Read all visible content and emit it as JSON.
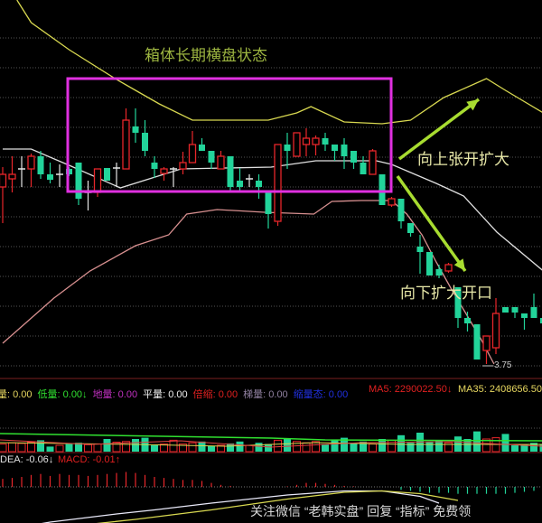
{
  "chart_data": {
    "type": "candlestick",
    "title": "",
    "ylim": [
      3.66,
      7.78
    ],
    "grid": true,
    "colors": {
      "up": "#e8262a",
      "down": "#22d49a",
      "flat": "#e6e6e6",
      "upper_band": "#d8d850",
      "middle_band": "#e0e0e0",
      "lower_band": "#d89090",
      "box": "#e030e0",
      "arrow": "#a8dc30"
    },
    "candles": [
      [
        5.71,
        5.85,
        5.93,
        5.31
      ],
      [
        5.8,
        5.85,
        6.05,
        5.65
      ],
      [
        5.91,
        5.91,
        6.05,
        5.71
      ],
      [
        5.91,
        6.05,
        6.08,
        5.71
      ],
      [
        6.05,
        5.85,
        6.11,
        5.8
      ],
      [
        5.85,
        5.79,
        5.98,
        5.75
      ],
      [
        5.85,
        5.85,
        5.96,
        5.71
      ],
      [
        5.91,
        5.85,
        5.93,
        5.83
      ],
      [
        5.98,
        5.58,
        5.98,
        5.51
      ],
      [
        5.65,
        5.65,
        5.78,
        5.45
      ],
      [
        5.65,
        5.91,
        5.91,
        5.6
      ],
      [
        5.92,
        5.78,
        5.92,
        5.78
      ],
      [
        5.92,
        5.92,
        5.98,
        5.71
      ],
      [
        5.91,
        6.45,
        6.58,
        5.91
      ],
      [
        6.38,
        6.31,
        6.58,
        6.2
      ],
      [
        6.31,
        6.11,
        6.45,
        6.05
      ],
      [
        5.98,
        5.91,
        6.05,
        5.81
      ],
      [
        5.86,
        5.91,
        5.93,
        5.78
      ],
      [
        5.91,
        5.91,
        5.93,
        5.71
      ],
      [
        5.91,
        5.98,
        6.1,
        5.85
      ],
      [
        5.98,
        6.18,
        6.33,
        5.98
      ],
      [
        6.18,
        6.11,
        6.25,
        6.11
      ],
      [
        6.11,
        5.98,
        6.11,
        5.91
      ],
      [
        5.91,
        6.05,
        6.11,
        5.91
      ],
      [
        6.05,
        5.71,
        6.05,
        5.65
      ],
      [
        5.78,
        5.71,
        5.92,
        5.66
      ],
      [
        5.8,
        5.8,
        5.85,
        5.71
      ],
      [
        5.78,
        5.71,
        5.85,
        5.58
      ],
      [
        5.65,
        5.41,
        5.65,
        5.25
      ],
      [
        5.33,
        6.18,
        6.18,
        5.28
      ],
      [
        6.18,
        6.11,
        6.31,
        5.91
      ],
      [
        6.05,
        6.31,
        6.31,
        6.05
      ],
      [
        6.18,
        6.25,
        6.36,
        6.05
      ],
      [
        6.18,
        6.25,
        6.28,
        6.06
      ],
      [
        6.25,
        6.18,
        6.31,
        6.11
      ],
      [
        6.18,
        6.11,
        6.18,
        6.0
      ],
      [
        6.18,
        6.05,
        6.25,
        5.91
      ],
      [
        6.11,
        5.98,
        6.11,
        5.91
      ],
      [
        5.98,
        5.85,
        6.05,
        5.85
      ],
      [
        5.85,
        6.11,
        6.13,
        5.85
      ],
      [
        5.85,
        5.51,
        5.85,
        5.51
      ],
      [
        5.51,
        5.58,
        5.6,
        5.49
      ],
      [
        5.58,
        5.33,
        5.58,
        5.25
      ],
      [
        5.31,
        5.2,
        5.31,
        5.16
      ],
      [
        5.05,
        4.99,
        5.18,
        4.75
      ],
      [
        4.99,
        4.73,
        4.99,
        4.73
      ],
      [
        4.8,
        4.73,
        4.85,
        4.7
      ],
      [
        4.78,
        4.85,
        4.87,
        4.76
      ],
      [
        4.6,
        4.26,
        4.6,
        4.15
      ],
      [
        4.26,
        4.2,
        4.33,
        4.11
      ],
      [
        4.19,
        3.8,
        4.19,
        3.8
      ],
      [
        3.9,
        4.06,
        4.06,
        3.75
      ],
      [
        3.93,
        4.31,
        4.48,
        3.86
      ],
      [
        4.38,
        4.32,
        4.38,
        4.32
      ],
      [
        4.38,
        4.32,
        4.38,
        4.26
      ],
      [
        4.31,
        4.26,
        4.31,
        4.13
      ],
      [
        4.38,
        4.26,
        4.53,
        4.26
      ],
      [
        4.26,
        4.2,
        4.26,
        4.2
      ]
    ],
    "upper_band": [
      [
        1.5,
        7.78
      ],
      [
        3,
        7.53
      ],
      [
        7,
        7.23
      ],
      [
        12,
        6.9
      ],
      [
        14,
        6.78
      ],
      [
        16.5,
        6.63
      ],
      [
        20,
        6.45
      ],
      [
        28,
        6.45
      ],
      [
        31,
        6.53
      ],
      [
        32.5,
        6.6
      ],
      [
        36,
        6.43
      ],
      [
        40,
        6.41
      ],
      [
        43,
        6.45
      ],
      [
        46.5,
        6.7
      ],
      [
        51,
        6.91
      ],
      [
        53,
        6.78
      ],
      [
        57,
        6.53
      ]
    ],
    "middle_band": [
      [
        0,
        6.13
      ],
      [
        3,
        6.13
      ],
      [
        7,
        5.95
      ],
      [
        12.4,
        5.7
      ],
      [
        18.8,
        5.91
      ],
      [
        28.3,
        5.93
      ],
      [
        33,
        6.0
      ],
      [
        39.4,
        6.0
      ],
      [
        41,
        5.96
      ],
      [
        45.7,
        5.75
      ],
      [
        48.6,
        5.61
      ],
      [
        52.1,
        5.21
      ],
      [
        57,
        4.78
      ]
    ],
    "lower_band": [
      [
        0,
        3.98
      ],
      [
        5.4,
        4.48
      ],
      [
        9.2,
        4.78
      ],
      [
        14,
        5.06
      ],
      [
        17.5,
        5.18
      ],
      [
        19.4,
        5.41
      ],
      [
        22.6,
        5.46
      ],
      [
        27.6,
        5.43
      ],
      [
        32.8,
        5.41
      ],
      [
        34.7,
        5.55
      ],
      [
        37.8,
        5.56
      ],
      [
        41,
        5.56
      ],
      [
        42.6,
        5.41
      ],
      [
        44.2,
        5.18
      ],
      [
        45.7,
        4.88
      ],
      [
        47.3,
        4.58
      ],
      [
        49,
        4.28
      ],
      [
        50.5,
        4.01
      ],
      [
        51.8,
        3.75
      ]
    ],
    "low_label": "3.75",
    "annotations": {
      "box_label": "箱体长期横盘状态",
      "up_label": "向上张开扩大",
      "down_label": "向下扩大开口"
    },
    "volume": [
      12,
      14,
      13,
      15,
      18,
      8,
      10,
      12,
      14,
      11,
      12,
      20,
      15,
      16,
      20,
      22,
      10,
      12,
      18,
      12,
      14,
      16,
      9,
      10,
      13,
      16,
      10,
      14,
      12,
      18,
      20,
      16,
      14,
      16,
      12,
      18,
      22,
      14,
      16,
      12,
      20,
      18,
      26,
      14,
      30,
      16,
      18,
      14,
      24,
      20,
      32,
      20,
      22,
      28,
      10,
      12,
      14,
      12
    ],
    "volume_ma": {
      "ma5_color": "#ffffff",
      "ma35_color": "#e8c060"
    },
    "macd_hist": [
      8,
      9,
      10,
      12,
      13,
      11,
      13,
      12,
      12,
      11,
      12,
      13,
      14,
      15,
      14,
      12,
      10,
      9,
      8,
      7,
      7,
      6,
      4,
      2,
      1,
      0,
      0,
      0,
      0,
      0,
      0.5,
      2,
      4,
      4,
      3,
      2,
      1,
      0.5,
      0,
      0,
      0,
      0,
      -3,
      -4,
      -5,
      -6,
      -6,
      -6,
      -7,
      -7,
      -7,
      -7,
      -7,
      -7,
      -6,
      -5,
      -4,
      -3
    ],
    "dif": [
      [
        0,
        -0.32
      ],
      [
        5,
        -0.26
      ],
      [
        12,
        -0.2
      ],
      [
        16,
        -0.17
      ],
      [
        22,
        -0.12
      ],
      [
        30,
        -0.06
      ],
      [
        36,
        -0.03
      ],
      [
        40,
        -0.03
      ],
      [
        44,
        -0.07
      ],
      [
        46,
        -0.12
      ]
    ],
    "dea": [
      [
        0,
        -0.36
      ],
      [
        6,
        -0.3
      ],
      [
        14,
        -0.24
      ],
      [
        22,
        -0.17
      ],
      [
        30,
        -0.09
      ],
      [
        36,
        -0.04
      ],
      [
        40,
        -0.03
      ],
      [
        44,
        -0.05
      ],
      [
        48,
        -0.1
      ]
    ]
  },
  "volume_panel": {
    "labels": [
      {
        "text": "量: 0.00",
        "color": "#e8d860"
      },
      {
        "text": "低量: 0.00↓",
        "color": "#30e030"
      },
      {
        "text": "地量: 0.00",
        "color": "#c030c0"
      },
      {
        "text": "平量: 0.00",
        "color": "#f0f0f0"
      },
      {
        "text": "倍缩: 0.00",
        "color": "#e02020"
      },
      {
        "text": "梯量: 0.00",
        "color": "#9080a0"
      },
      {
        "text": "缩量态: 0.00",
        "color": "#2030e0"
      }
    ],
    "ma5": "MA5: 2290022.50↓",
    "ma35": "MA35: 2408656.50↓"
  },
  "macd_panel": {
    "dea": "DEA: -0.06↓",
    "macd": "MACD: -0.01↑"
  },
  "watermark": "关注微信 “老韩实盘” 回复 “指标” 免费领"
}
